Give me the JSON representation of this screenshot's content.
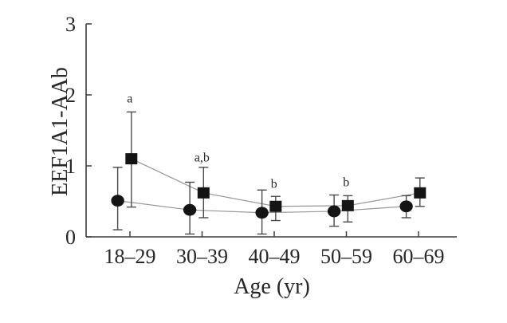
{
  "figure": {
    "background": "#ffffff",
    "colors": {
      "axis": "#3d3d3d",
      "text": "#272727",
      "marker": "#141414",
      "error_bar": "#4a4a4a",
      "connector": "#969696"
    }
  },
  "chart_data": {
    "type": "line",
    "title": "",
    "xlabel": "Age (yr)",
    "ylabel": "EEF1A1-AAb",
    "categories": [
      "18–29",
      "30–39",
      "40–49",
      "50–59",
      "60–69"
    ],
    "ylim": [
      0,
      3
    ],
    "yticks": [
      0,
      1,
      2,
      3
    ],
    "grid": false,
    "legend": "none",
    "series": [
      {
        "name": "circles",
        "marker": "circle",
        "values": [
          0.51,
          0.38,
          0.34,
          0.36,
          0.43
        ],
        "whisker_top": [
          0.98,
          0.77,
          0.66,
          0.59,
          0.58
        ],
        "whisker_bottom": [
          0.1,
          0.04,
          0.04,
          0.15,
          0.27
        ],
        "x_offset": -0.17
      },
      {
        "name": "squares",
        "marker": "square",
        "values": [
          1.1,
          0.62,
          0.43,
          0.44,
          0.62
        ],
        "whisker_top": [
          1.76,
          0.98,
          0.57,
          0.58,
          0.83
        ],
        "whisker_bottom": [
          0.42,
          0.27,
          0.23,
          0.21,
          0.43
        ],
        "x_offset": 0.02
      }
    ],
    "annotations": [
      {
        "label": "a",
        "category_index": 0,
        "y": 1.95
      },
      {
        "label": "a,b",
        "category_index": 1,
        "y": 1.12
      },
      {
        "label": "b",
        "category_index": 2,
        "y": 0.75
      },
      {
        "label": "b",
        "category_index": 3,
        "y": 0.77
      }
    ]
  }
}
